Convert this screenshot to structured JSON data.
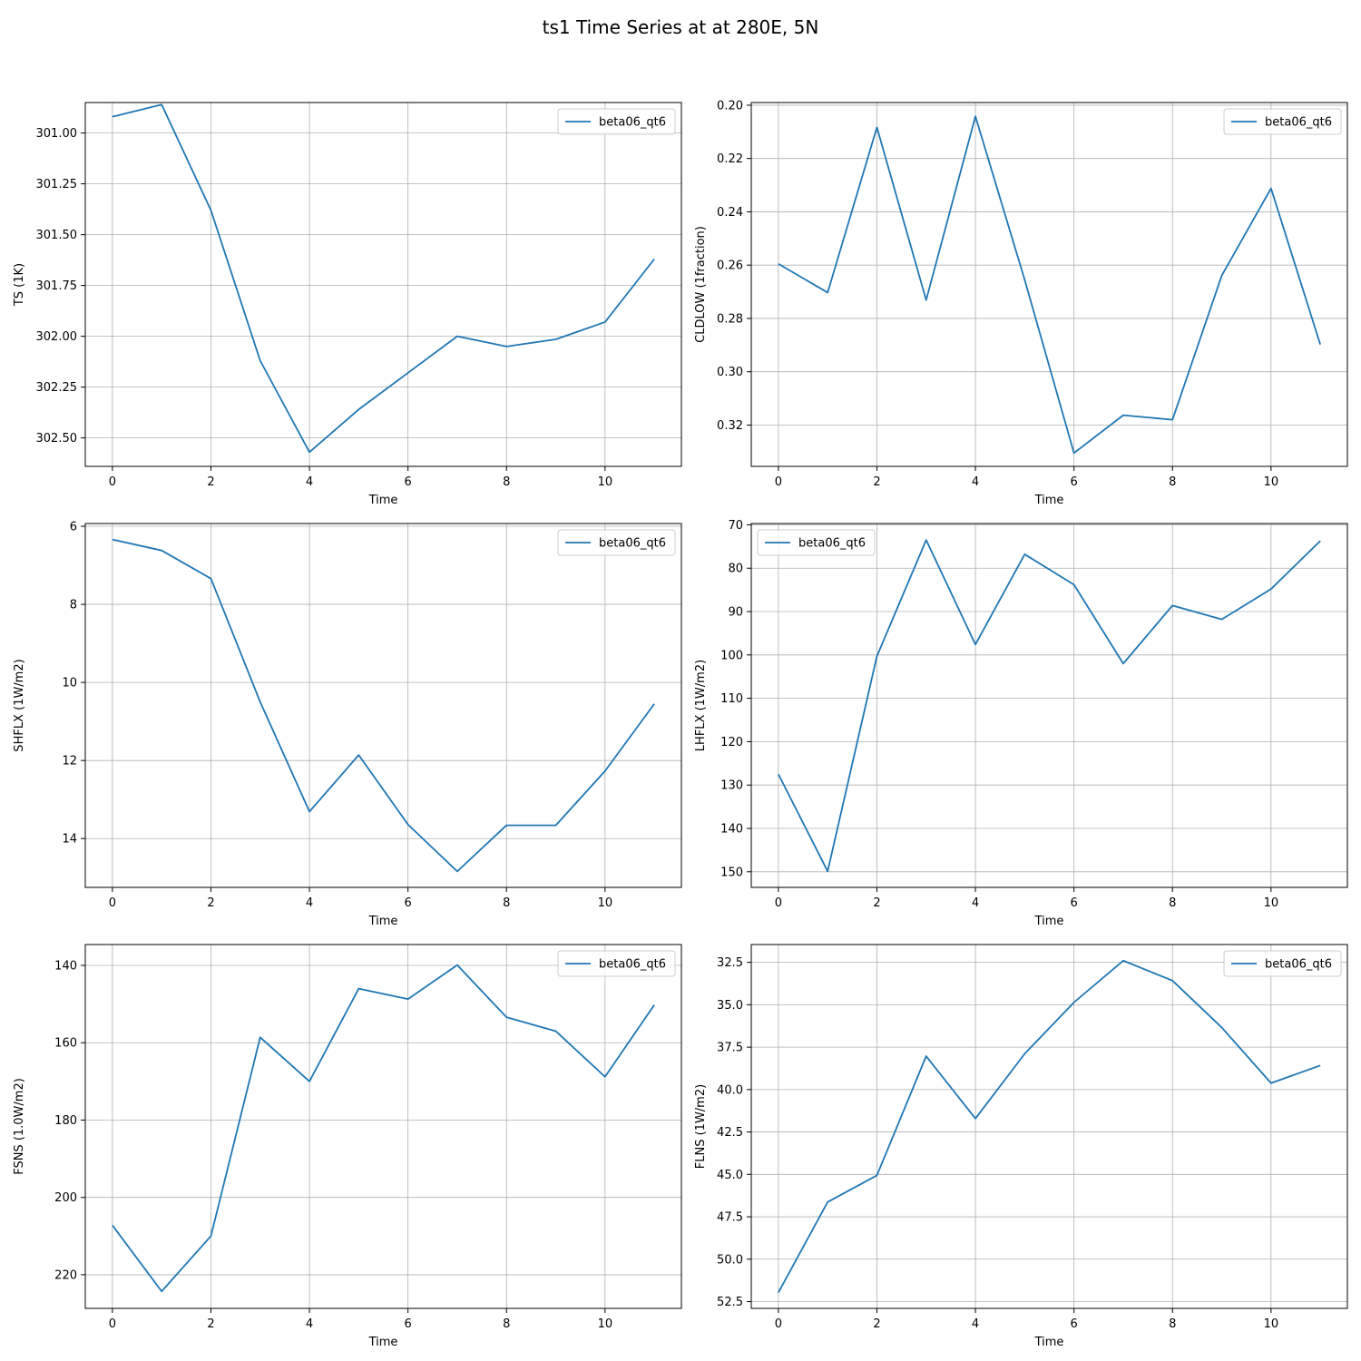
{
  "figure": {
    "title": "ts1 Time Series at at 280E, 5N"
  },
  "chart_data": [
    {
      "type": "line",
      "xlabel": "Time",
      "ylabel": "TS (1K)",
      "y_inverted": true,
      "xlim": [
        -0.55,
        11.55
      ],
      "ylim": [
        300.85,
        302.64
      ],
      "xticks": [
        0,
        2,
        4,
        6,
        8,
        10
      ],
      "yticks": [
        301.0,
        301.25,
        301.5,
        301.75,
        302.0,
        302.25,
        302.5
      ],
      "ytick_labels": [
        "301.00",
        "301.25",
        "301.50",
        "301.75",
        "302.00",
        "302.25",
        "302.50"
      ],
      "grid": true,
      "legend_position": "upper right",
      "series": [
        {
          "name": "beta06_qt6",
          "color": "#1f77b4",
          "x": [
            0,
            1,
            2,
            3,
            4,
            5,
            6,
            7,
            8,
            9,
            10,
            11
          ],
          "y": [
            300.92,
            300.86,
            301.38,
            302.12,
            302.57,
            302.36,
            302.18,
            302.0,
            302.05,
            302.015,
            301.93,
            301.62
          ]
        }
      ]
    },
    {
      "type": "line",
      "xlabel": "Time",
      "ylabel": "CLDLOW (1fraction)",
      "y_inverted": true,
      "xlim": [
        -0.55,
        11.55
      ],
      "ylim": [
        0.199,
        0.3355
      ],
      "xticks": [
        0,
        2,
        4,
        6,
        8,
        10
      ],
      "yticks": [
        0.2,
        0.22,
        0.24,
        0.26,
        0.28,
        0.3,
        0.32
      ],
      "ytick_labels": [
        "0.20",
        "0.22",
        "0.24",
        "0.26",
        "0.28",
        "0.30",
        "0.32"
      ],
      "grid": true,
      "legend_position": "upper right",
      "series": [
        {
          "name": "beta06_qt6",
          "color": "#1f77b4",
          "x": [
            0,
            1,
            2,
            3,
            4,
            5,
            6,
            7,
            8,
            9,
            10,
            11
          ],
          "y": [
            0.2595,
            0.2703,
            0.2083,
            0.2731,
            0.2042,
            0.2655,
            0.3305,
            0.3163,
            0.318,
            0.2639,
            0.2312,
            0.2898
          ]
        }
      ]
    },
    {
      "type": "line",
      "xlabel": "Time",
      "ylabel": "SHFLX (1W/m2)",
      "y_inverted": true,
      "xlim": [
        -0.55,
        11.55
      ],
      "ylim": [
        5.93,
        15.25
      ],
      "xticks": [
        0,
        2,
        4,
        6,
        8,
        10
      ],
      "yticks": [
        6,
        8,
        10,
        12,
        14
      ],
      "ytick_labels": [
        "6",
        "8",
        "10",
        "12",
        "14"
      ],
      "grid": true,
      "legend_position": "upper right",
      "series": [
        {
          "name": "beta06_qt6",
          "color": "#1f77b4",
          "x": [
            0,
            1,
            2,
            3,
            4,
            5,
            6,
            7,
            8,
            9,
            10,
            11
          ],
          "y": [
            6.34,
            6.62,
            7.34,
            10.5,
            13.31,
            11.86,
            13.64,
            14.84,
            13.66,
            13.66,
            12.27,
            10.55
          ]
        }
      ]
    },
    {
      "type": "line",
      "xlabel": "Time",
      "ylabel": "LHFLX (1W/m2)",
      "y_inverted": true,
      "xlim": [
        -0.55,
        11.55
      ],
      "ylim": [
        69.7,
        153.6
      ],
      "xticks": [
        0,
        2,
        4,
        6,
        8,
        10
      ],
      "yticks": [
        70,
        80,
        90,
        100,
        110,
        120,
        130,
        140,
        150
      ],
      "ytick_labels": [
        "70",
        "80",
        "90",
        "100",
        "110",
        "120",
        "130",
        "140",
        "150"
      ],
      "grid": true,
      "legend_position": "upper left",
      "series": [
        {
          "name": "beta06_qt6",
          "color": "#1f77b4",
          "x": [
            0,
            1,
            2,
            3,
            4,
            5,
            6,
            7,
            8,
            9,
            10,
            11
          ],
          "y": [
            127.5,
            149.9,
            100.3,
            73.5,
            97.6,
            76.8,
            83.8,
            102.0,
            88.6,
            91.8,
            84.8,
            73.7
          ]
        }
      ]
    },
    {
      "type": "line",
      "xlabel": "Time",
      "ylabel": "FSNS (1.0W/m2)",
      "y_inverted": true,
      "xlim": [
        -0.55,
        11.55
      ],
      "ylim": [
        134.6,
        228.7
      ],
      "xticks": [
        0,
        2,
        4,
        6,
        8,
        10
      ],
      "yticks": [
        140,
        160,
        180,
        200,
        220
      ],
      "ytick_labels": [
        "140",
        "160",
        "180",
        "200",
        "220"
      ],
      "grid": true,
      "legend_position": "upper right",
      "series": [
        {
          "name": "beta06_qt6",
          "color": "#1f77b4",
          "x": [
            0,
            1,
            2,
            3,
            4,
            5,
            6,
            7,
            8,
            9,
            10,
            11
          ],
          "y": [
            207.2,
            224.3,
            210.0,
            158.6,
            170.0,
            146.0,
            148.7,
            139.9,
            153.4,
            157.0,
            168.8,
            150.2
          ]
        }
      ]
    },
    {
      "type": "line",
      "xlabel": "Time",
      "ylabel": "FLNS (1W/m2)",
      "y_inverted": true,
      "xlim": [
        -0.55,
        11.55
      ],
      "ylim": [
        31.45,
        52.9
      ],
      "xticks": [
        0,
        2,
        4,
        6,
        8,
        10
      ],
      "yticks": [
        32.5,
        35.0,
        37.5,
        40.0,
        42.5,
        45.0,
        47.5,
        50.0,
        52.5
      ],
      "ytick_labels": [
        "32.5",
        "35.0",
        "37.5",
        "40.0",
        "42.5",
        "45.0",
        "47.5",
        "50.0",
        "52.5"
      ],
      "grid": true,
      "legend_position": "upper right",
      "series": [
        {
          "name": "beta06_qt6",
          "color": "#1f77b4",
          "x": [
            0,
            1,
            2,
            3,
            4,
            5,
            6,
            7,
            8,
            9,
            10,
            11
          ],
          "y": [
            51.97,
            46.63,
            45.06,
            38.03,
            41.71,
            37.89,
            34.86,
            32.4,
            33.58,
            36.34,
            39.62,
            38.58
          ]
        }
      ]
    }
  ]
}
